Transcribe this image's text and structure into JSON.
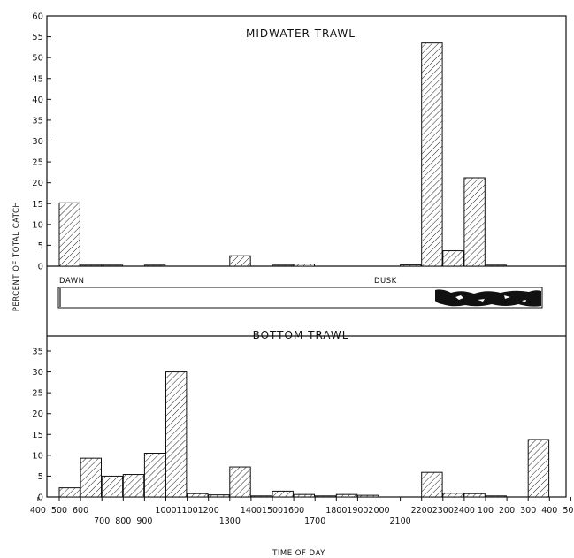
{
  "chart_data": {
    "type": "bar",
    "ylabel": "PERCENT OF TOTAL CATCH",
    "xlabel": "TIME OF DAY",
    "x_ticks_row1": [
      "400",
      "500",
      "600",
      "1000",
      "1100",
      "1200",
      "1400",
      "1500",
      "1600",
      "1800",
      "1900",
      "2000",
      "2200",
      "2300",
      "2400",
      "100",
      "200",
      "300",
      "400",
      "500"
    ],
    "x_ticks_row2": [
      "700",
      "800",
      "900",
      "1300",
      "1700",
      "2100"
    ],
    "light_bar": {
      "dawn_label": "DAWN",
      "dusk_label": "DUSK"
    },
    "panels": [
      {
        "title": "MIDWATER TRAWL",
        "ylim": [
          0,
          60
        ],
        "yticks": [
          "0",
          "5",
          "10",
          "15",
          "20",
          "25",
          "30",
          "35",
          "40",
          "45",
          "50",
          "55",
          "60"
        ],
        "values": [
          15.2,
          0.2,
          0.1,
          0,
          0.1,
          0,
          0,
          0,
          2.5,
          0,
          0.2,
          0.5,
          0,
          0,
          0,
          0,
          0.3,
          53.5,
          3.7,
          21.2,
          0.1,
          0,
          0,
          0
        ]
      },
      {
        "title": "BOTTOM TRAWL",
        "ylim": [
          0,
          35
        ],
        "yticks": [
          "0",
          "5",
          "10",
          "15",
          "20",
          "25",
          "30",
          "35"
        ],
        "values": [
          2.2,
          9.3,
          5.0,
          5.4,
          10.5,
          30.0,
          0.8,
          0.5,
          7.2,
          0.2,
          1.4,
          0.6,
          0.1,
          0.6,
          0.4,
          0,
          0,
          5.9,
          0.9,
          0.8,
          0.2,
          0,
          13.8,
          0
        ]
      }
    ]
  }
}
